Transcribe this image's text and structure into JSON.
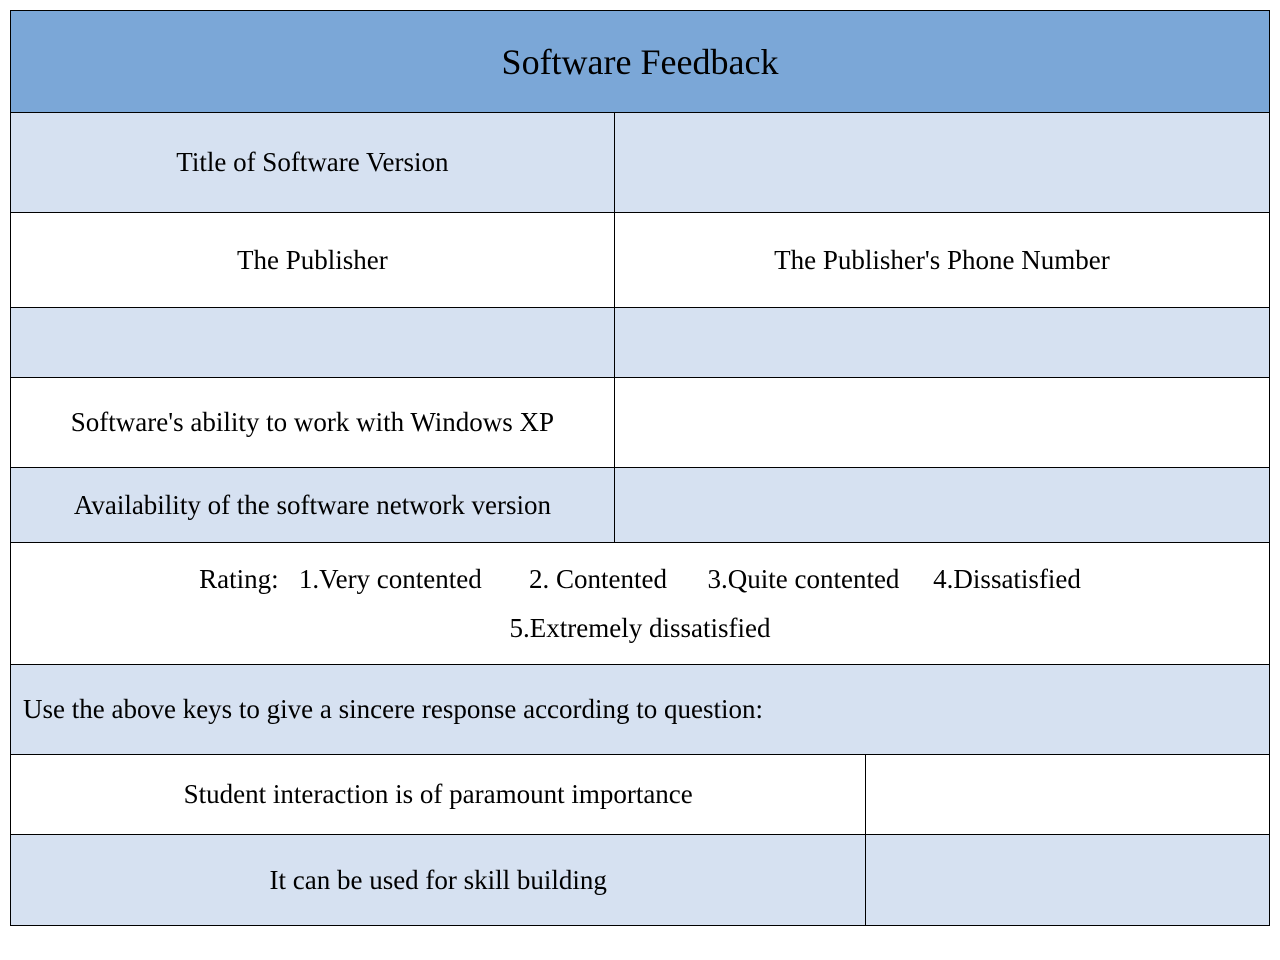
{
  "header": {
    "title": "Software Feedback"
  },
  "rows": {
    "title_version": "Title of Software Version",
    "publisher": "The Publisher",
    "publisher_phone": "The Publisher's Phone Number",
    "windows_xp": "Software's ability to work with Windows XP",
    "network_version": "Availability of the software network version",
    "rating_line1": "Rating:   1.Very contented       2. Contented      3.Quite contented     4.Dissatisfied",
    "rating_line2": "5.Extremely dissatisfied",
    "instruction": "Use the above keys to give a sincere response according to question:",
    "student_interaction": "Student interaction is of paramount importance",
    "skill_building": "It can be used for skill building"
  },
  "colors": {
    "header_bg": "#7ba7d7",
    "alt_bg": "#d6e1f1",
    "white_bg": "#ffffff",
    "border": "#000000",
    "text": "#000000"
  }
}
